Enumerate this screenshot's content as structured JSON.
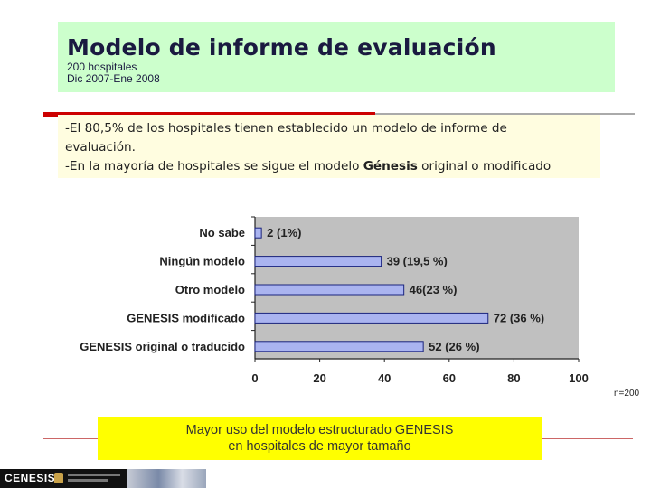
{
  "header": {
    "title": "Modelo de informe de evaluación",
    "subtitle_line1": "200 hospitales",
    "subtitle_line2": "Dic 2007-Ene 2008"
  },
  "findings": {
    "line1_a": "-El 80,5% de los hospitales ",
    "line1_b": "tienen establecido un modelo de informe de",
    "line2": "evaluación.",
    "line3_a": "-En la mayoría de hospitales se sigue el modelo ",
    "line3_b": "Génesis",
    "line3_c": " original o modificado"
  },
  "chart_data": {
    "type": "bar",
    "orientation": "horizontal",
    "categories": [
      "No sabe",
      "Ningún modelo",
      "Otro modelo",
      "GENESIS modificado",
      "GENESIS original o traducido"
    ],
    "values": [
      2,
      39,
      46,
      72,
      52
    ],
    "data_labels": [
      "2 (1%)",
      "39 (19,5 %)",
      "46(23 %)",
      "72 (36 %)",
      "52 (26 %)"
    ],
    "xlim": [
      0,
      100
    ],
    "xticks": [
      "0",
      "20",
      "40",
      "60",
      "80",
      "100"
    ],
    "grid": false,
    "colors": {
      "bar": "#aab4f0",
      "bar_border": "#1a237e",
      "plot_bg": "#c0c0c0"
    }
  },
  "sample_note": "n=200",
  "conclusion": {
    "line1": "Mayor uso del modelo estructurado GENESIS",
    "line2": "en hospitales de mayor tamaño"
  },
  "footer": {
    "logo_text": "CENESIS"
  }
}
